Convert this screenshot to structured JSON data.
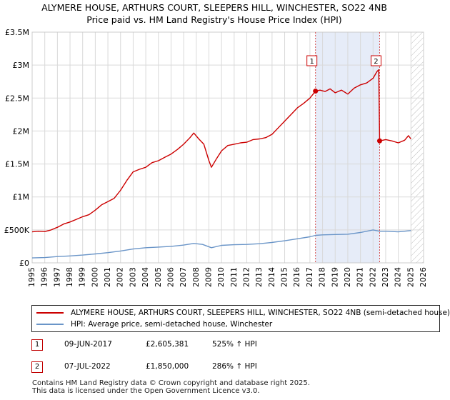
{
  "title": {
    "line1": "ALYMERE HOUSE, ARTHURS COURT, SLEEPERS HILL, WINCHESTER, SO22 4NB",
    "line2": "Price paid vs. HM Land Registry's House Price Index (HPI)"
  },
  "colors": {
    "property": "#cc0000",
    "hpi": "#6a95c8",
    "shade": "#e6ecf8",
    "grid": "#d9d9d9",
    "vline": "#d65050",
    "hatch": "#bbbbbb"
  },
  "chart_data": {
    "type": "line",
    "x_range": [
      1995,
      2026
    ],
    "y_range": [
      0,
      3500000
    ],
    "x_ticks": [
      "1995",
      "1996",
      "1997",
      "1998",
      "1999",
      "2000",
      "2001",
      "2002",
      "2003",
      "2004",
      "2005",
      "2006",
      "2007",
      "2008",
      "2009",
      "2010",
      "2011",
      "2012",
      "2013",
      "2014",
      "2015",
      "2016",
      "2017",
      "2018",
      "2019",
      "2020",
      "2021",
      "2022",
      "2023",
      "2024",
      "2025",
      "2026"
    ],
    "y_ticks": [
      {
        "value": 0,
        "label": "£0"
      },
      {
        "value": 500000,
        "label": "£500K"
      },
      {
        "value": 1000000,
        "label": "£1M"
      },
      {
        "value": 1500000,
        "label": "£1.5M"
      },
      {
        "value": 2000000,
        "label": "£2M"
      },
      {
        "value": 2500000,
        "label": "£2.5M"
      },
      {
        "value": 3000000,
        "label": "£3M"
      },
      {
        "value": 3500000,
        "label": "£3.5M"
      }
    ],
    "shaded_period": [
      2017.44,
      2022.52
    ],
    "future_hatch_from": 2025.0,
    "series": [
      {
        "name": "ALYMERE HOUSE, ARTHURS COURT, SLEEPERS HILL, WINCHESTER, SO22 4NB (semi-detached house)",
        "color_key": "property",
        "points": [
          [
            1995.0,
            470000
          ],
          [
            1995.5,
            480000
          ],
          [
            1996.0,
            475000
          ],
          [
            1996.5,
            500000
          ],
          [
            1997.0,
            540000
          ],
          [
            1997.5,
            590000
          ],
          [
            1998.0,
            620000
          ],
          [
            1998.5,
            660000
          ],
          [
            1999.0,
            700000
          ],
          [
            1999.5,
            730000
          ],
          [
            2000.0,
            800000
          ],
          [
            2000.5,
            880000
          ],
          [
            2001.0,
            930000
          ],
          [
            2001.5,
            980000
          ],
          [
            2002.0,
            1100000
          ],
          [
            2002.5,
            1250000
          ],
          [
            2003.0,
            1380000
          ],
          [
            2003.5,
            1420000
          ],
          [
            2004.0,
            1450000
          ],
          [
            2004.5,
            1520000
          ],
          [
            2005.0,
            1550000
          ],
          [
            2005.5,
            1600000
          ],
          [
            2006.0,
            1650000
          ],
          [
            2006.5,
            1720000
          ],
          [
            2007.0,
            1800000
          ],
          [
            2007.5,
            1900000
          ],
          [
            2007.8,
            1970000
          ],
          [
            2008.2,
            1880000
          ],
          [
            2008.6,
            1800000
          ],
          [
            2009.0,
            1550000
          ],
          [
            2009.2,
            1450000
          ],
          [
            2009.6,
            1580000
          ],
          [
            2010.0,
            1700000
          ],
          [
            2010.5,
            1780000
          ],
          [
            2011.0,
            1800000
          ],
          [
            2011.5,
            1820000
          ],
          [
            2012.0,
            1830000
          ],
          [
            2012.5,
            1870000
          ],
          [
            2013.0,
            1880000
          ],
          [
            2013.5,
            1900000
          ],
          [
            2014.0,
            1950000
          ],
          [
            2014.5,
            2050000
          ],
          [
            2015.0,
            2150000
          ],
          [
            2015.5,
            2250000
          ],
          [
            2016.0,
            2350000
          ],
          [
            2016.5,
            2420000
          ],
          [
            2017.0,
            2500000
          ],
          [
            2017.44,
            2605381
          ],
          [
            2017.8,
            2620000
          ],
          [
            2018.2,
            2600000
          ],
          [
            2018.6,
            2640000
          ],
          [
            2019.0,
            2580000
          ],
          [
            2019.5,
            2620000
          ],
          [
            2020.0,
            2560000
          ],
          [
            2020.5,
            2650000
          ],
          [
            2021.0,
            2700000
          ],
          [
            2021.5,
            2730000
          ],
          [
            2022.0,
            2800000
          ],
          [
            2022.3,
            2900000
          ],
          [
            2022.45,
            2930000
          ],
          [
            2022.52,
            1850000
          ],
          [
            2023.0,
            1870000
          ],
          [
            2023.5,
            1850000
          ],
          [
            2024.0,
            1820000
          ],
          [
            2024.5,
            1860000
          ],
          [
            2024.8,
            1930000
          ],
          [
            2025.0,
            1880000
          ]
        ]
      },
      {
        "name": "HPI: Average price, semi-detached house, Winchester",
        "color_key": "hpi",
        "points": [
          [
            1995.0,
            75000
          ],
          [
            1996.0,
            80000
          ],
          [
            1997.0,
            95000
          ],
          [
            1998.0,
            105000
          ],
          [
            1999.0,
            118000
          ],
          [
            2000.0,
            135000
          ],
          [
            2001.0,
            155000
          ],
          [
            2002.0,
            180000
          ],
          [
            2003.0,
            210000
          ],
          [
            2004.0,
            230000
          ],
          [
            2005.0,
            240000
          ],
          [
            2006.0,
            250000
          ],
          [
            2007.0,
            270000
          ],
          [
            2007.8,
            295000
          ],
          [
            2008.5,
            280000
          ],
          [
            2009.2,
            230000
          ],
          [
            2010.0,
            265000
          ],
          [
            2011.0,
            275000
          ],
          [
            2012.0,
            280000
          ],
          [
            2013.0,
            290000
          ],
          [
            2014.0,
            310000
          ],
          [
            2015.0,
            335000
          ],
          [
            2016.0,
            365000
          ],
          [
            2017.0,
            395000
          ],
          [
            2017.44,
            417000
          ],
          [
            2018.0,
            425000
          ],
          [
            2019.0,
            430000
          ],
          [
            2020.0,
            435000
          ],
          [
            2021.0,
            460000
          ],
          [
            2022.0,
            500000
          ],
          [
            2022.52,
            480000
          ],
          [
            2023.0,
            480000
          ],
          [
            2024.0,
            470000
          ],
          [
            2025.0,
            490000
          ]
        ]
      }
    ],
    "sales": [
      {
        "marker": "1",
        "x": 2017.44,
        "y": 2605381
      },
      {
        "marker": "2",
        "x": 2022.52,
        "y": 1850000
      }
    ]
  },
  "legend": {
    "property_label": "ALYMERE HOUSE, ARTHURS COURT, SLEEPERS HILL, WINCHESTER, SO22 4NB (semi-detached house)",
    "hpi_label": "HPI: Average price, semi-detached house, Winchester"
  },
  "transactions": [
    {
      "marker": "1",
      "date": "09-JUN-2017",
      "price": "£2,605,381",
      "hpi": "525% ↑ HPI"
    },
    {
      "marker": "2",
      "date": "07-JUL-2022",
      "price": "£1,850,000",
      "hpi": "286% ↑ HPI"
    }
  ],
  "footer": {
    "line1": "Contains HM Land Registry data © Crown copyright and database right 2025.",
    "line2": "This data is licensed under the Open Government Licence v3.0."
  }
}
